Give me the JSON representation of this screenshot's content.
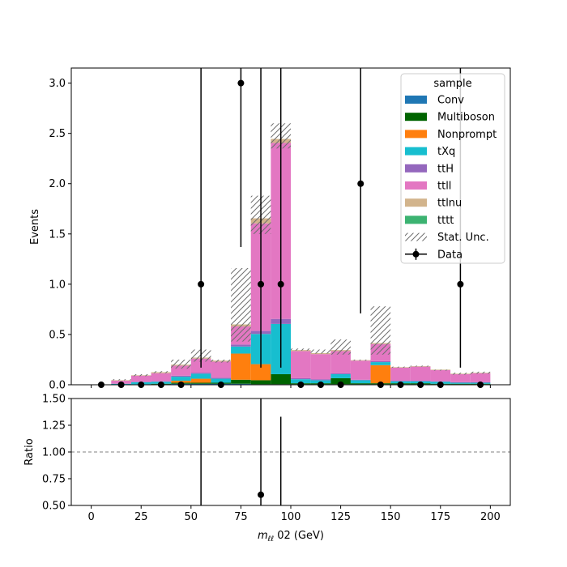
{
  "chart_data": [
    {
      "type": "bar",
      "stacked": true,
      "ylabel": "Events",
      "ylim": [
        0,
        3.15
      ],
      "yticks": [
        "0.0",
        "0.5",
        "1.0",
        "1.5",
        "2.0",
        "2.5",
        "3.0"
      ],
      "xlim": [
        -10,
        210
      ],
      "bin_edges": [
        0,
        10,
        20,
        30,
        40,
        50,
        60,
        70,
        80,
        90,
        100,
        110,
        120,
        130,
        140,
        150,
        160,
        170,
        180,
        190,
        200
      ],
      "legend": {
        "title": "sample",
        "position": "top-right"
      },
      "series": [
        {
          "name": "Conv",
          "color": "#1f77b4",
          "values": [
            0,
            0,
            0.005,
            0.005,
            0.01,
            0.01,
            0.01,
            0.01,
            0.005,
            0.005,
            0.005,
            0.005,
            0.005,
            0.005,
            0.005,
            0.005,
            0.005,
            0.005,
            0.005,
            0.005
          ]
        },
        {
          "name": "Multiboson",
          "color": "#006400",
          "values": [
            0,
            0,
            0,
            0.005,
            0.01,
            0.01,
            0.01,
            0.04,
            0.04,
            0.1,
            0.01,
            0.01,
            0.06,
            0.01,
            0.01,
            0.01,
            0.01,
            0.005,
            0.005,
            0.005
          ]
        },
        {
          "name": "Nonprompt",
          "color": "#ff7f0e",
          "values": [
            0,
            0,
            0,
            0,
            0.02,
            0.04,
            0,
            0.26,
            0.16,
            0,
            0,
            0,
            0,
            0,
            0.18,
            0,
            0,
            0,
            0,
            0
          ]
        },
        {
          "name": "tXq",
          "color": "#17becf",
          "values": [
            0,
            0.01,
            0.02,
            0.02,
            0.04,
            0.05,
            0.04,
            0.07,
            0.3,
            0.5,
            0.04,
            0.03,
            0.04,
            0.03,
            0.03,
            0.02,
            0.02,
            0.02,
            0.01,
            0.01
          ]
        },
        {
          "name": "ttH",
          "color": "#9467bd",
          "values": [
            0,
            0,
            0.005,
            0.005,
            0.01,
            0.01,
            0.01,
            0.02,
            0.03,
            0.05,
            0.01,
            0.01,
            0.01,
            0.005,
            0.01,
            0.005,
            0.005,
            0.005,
            0.005,
            0.005
          ]
        },
        {
          "name": "ttll",
          "color": "#e377c2",
          "values": [
            0,
            0.03,
            0.06,
            0.08,
            0.1,
            0.14,
            0.16,
            0.18,
            1.07,
            1.75,
            0.27,
            0.25,
            0.22,
            0.19,
            0.17,
            0.13,
            0.14,
            0.11,
            0.08,
            0.09
          ]
        },
        {
          "name": "ttlnu",
          "color": "#d2b48c",
          "values": [
            0,
            0.005,
            0.005,
            0.01,
            0.01,
            0.01,
            0.01,
            0.02,
            0.05,
            0.04,
            0.01,
            0.01,
            0.01,
            0.005,
            0.01,
            0.005,
            0.005,
            0.005,
            0.005,
            0.005
          ]
        },
        {
          "name": "tttt",
          "color": "#3cb371",
          "values": [
            0,
            0,
            0,
            0,
            0,
            0,
            0,
            0,
            0,
            0,
            0,
            0,
            0,
            0,
            0,
            0,
            0,
            0,
            0,
            0
          ]
        }
      ],
      "stat_unc": {
        "name": "Stat. Unc.",
        "lower": [
          0,
          0.045,
          0.085,
          0.115,
          0.16,
          0.23,
          0.22,
          0.43,
          1.5,
          2.35,
          0.34,
          0.31,
          0.3,
          0.24,
          0.3,
          0.17,
          0.18,
          0.14,
          0.1,
          0.11
        ],
        "upper": [
          0,
          0.055,
          0.105,
          0.135,
          0.25,
          0.35,
          0.25,
          1.16,
          1.88,
          2.6,
          0.36,
          0.35,
          0.45,
          0.25,
          0.78,
          0.18,
          0.19,
          0.15,
          0.12,
          0.13
        ]
      },
      "data_series": {
        "name": "Data",
        "x": [
          5,
          15,
          25,
          35,
          45,
          55,
          65,
          75,
          85,
          95,
          105,
          115,
          125,
          135,
          145,
          155,
          165,
          175,
          185,
          195
        ],
        "values": [
          0,
          0,
          0,
          0,
          0,
          1,
          0,
          3,
          1,
          1,
          0,
          0,
          0,
          2,
          0,
          0,
          0,
          0,
          1,
          0
        ],
        "err_low": [
          0,
          0,
          0,
          0,
          0,
          0.83,
          0,
          1.63,
          0.83,
          0.83,
          0,
          0,
          0,
          1.29,
          0,
          0,
          0,
          0,
          0.83,
          0
        ],
        "err_high": [
          0,
          0,
          0,
          0,
          0,
          2.3,
          0,
          2.92,
          2.3,
          2.3,
          0,
          0,
          0,
          2.64,
          0,
          0,
          0,
          0,
          2.3,
          0
        ]
      }
    },
    {
      "type": "scatter",
      "ylabel": "Ratio",
      "xlabel": "m_ℓℓ 02 (GeV)",
      "ylim": [
        0.5,
        1.5
      ],
      "yticks": [
        "0.50",
        "0.75",
        "1.00",
        "1.25",
        "1.50"
      ],
      "xlim": [
        -10,
        210
      ],
      "xticks": [
        "0",
        "25",
        "50",
        "75",
        "100",
        "125",
        "150",
        "175",
        "200"
      ],
      "reference_line": 1.0,
      "points": [
        {
          "x": 55,
          "y": null,
          "err_low": 0.39,
          "err_high": 4.3
        },
        {
          "x": 85,
          "y": 0.6,
          "err_low": 0.5,
          "err_high": 1.9
        },
        {
          "x": 95,
          "y": null,
          "err_low": 0.33,
          "err_high": 1.33
        }
      ]
    }
  ]
}
